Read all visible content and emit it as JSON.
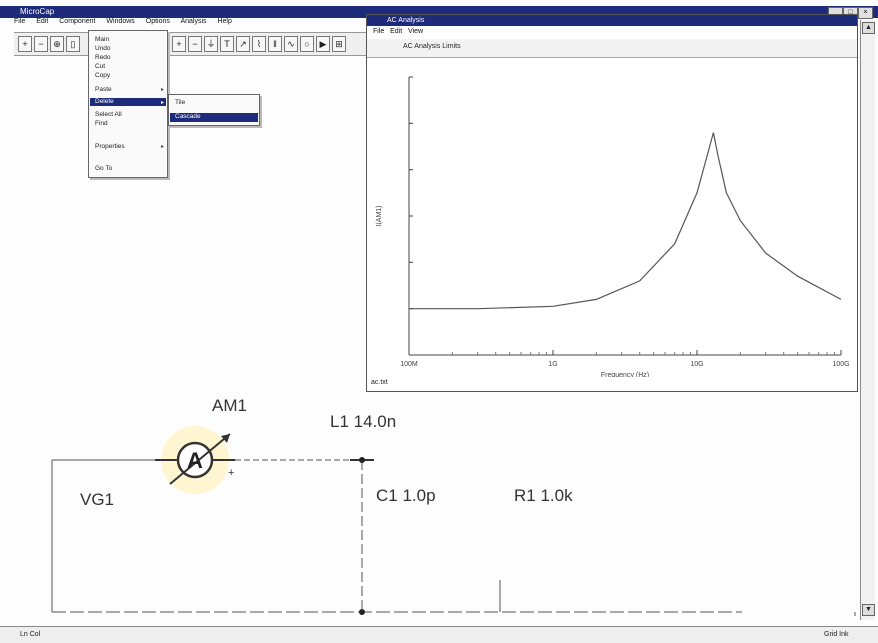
{
  "app": {
    "title": "MicroCap",
    "menu": [
      "File",
      "Edit",
      "Component",
      "Windows",
      "Options",
      "Analysis",
      "Help"
    ],
    "toolbar_icons": [
      "open-icon",
      "save-icon",
      "cut-icon",
      "copy-icon",
      "paste-icon",
      "wire-icon",
      "ground-icon",
      "text-icon"
    ]
  },
  "dropdown": {
    "items": [
      "Main",
      "Undo ",
      "Redo ",
      "Cut ",
      "Copy",
      "Paste",
      "Delete",
      "Select All",
      "Find",
      "Properties",
      "Go To"
    ],
    "selected_index": 6
  },
  "submenu": {
    "items": [
      "Tile",
      "Cascade"
    ],
    "selected_index": 1
  },
  "plot_window": {
    "title": "AC Analysis",
    "menu": [
      "File",
      "Edit",
      "View"
    ],
    "status": "ac.txt",
    "toolbar_text": "AC Analysis Limits"
  },
  "chart_data": {
    "type": "line",
    "xlabel": "Frequency (Hz)",
    "ylabel": "I(AM1)",
    "x_scale": "log",
    "xlim": [
      100000000,
      100000000000
    ],
    "x_ticks": [
      "100M",
      "1G",
      "10G",
      "100G"
    ],
    "ylim": [
      0,
      6
    ],
    "grid": false,
    "series": [
      {
        "x": [
          100000000,
          300000000,
          1000000000,
          2000000000,
          4000000000,
          7000000000,
          10000000000,
          12000000000,
          13000000000,
          14000000000,
          16000000000,
          20000000000,
          30000000000,
          50000000000,
          100000000000
        ],
        "y": [
          1.0,
          1.0,
          1.05,
          1.2,
          1.6,
          2.4,
          3.5,
          4.4,
          4.8,
          4.3,
          3.5,
          2.9,
          2.2,
          1.7,
          1.2
        ]
      }
    ]
  },
  "circuit": {
    "ammeter": {
      "name": "AM1",
      "glyph": "A"
    },
    "inductor": "L1 14.0n",
    "capacitor": "C1 1.0p",
    "resistor": "R1 1.0k",
    "source": "VG1"
  },
  "statusbar": {
    "left": "Ln Col",
    "right": "Grid Ink"
  }
}
